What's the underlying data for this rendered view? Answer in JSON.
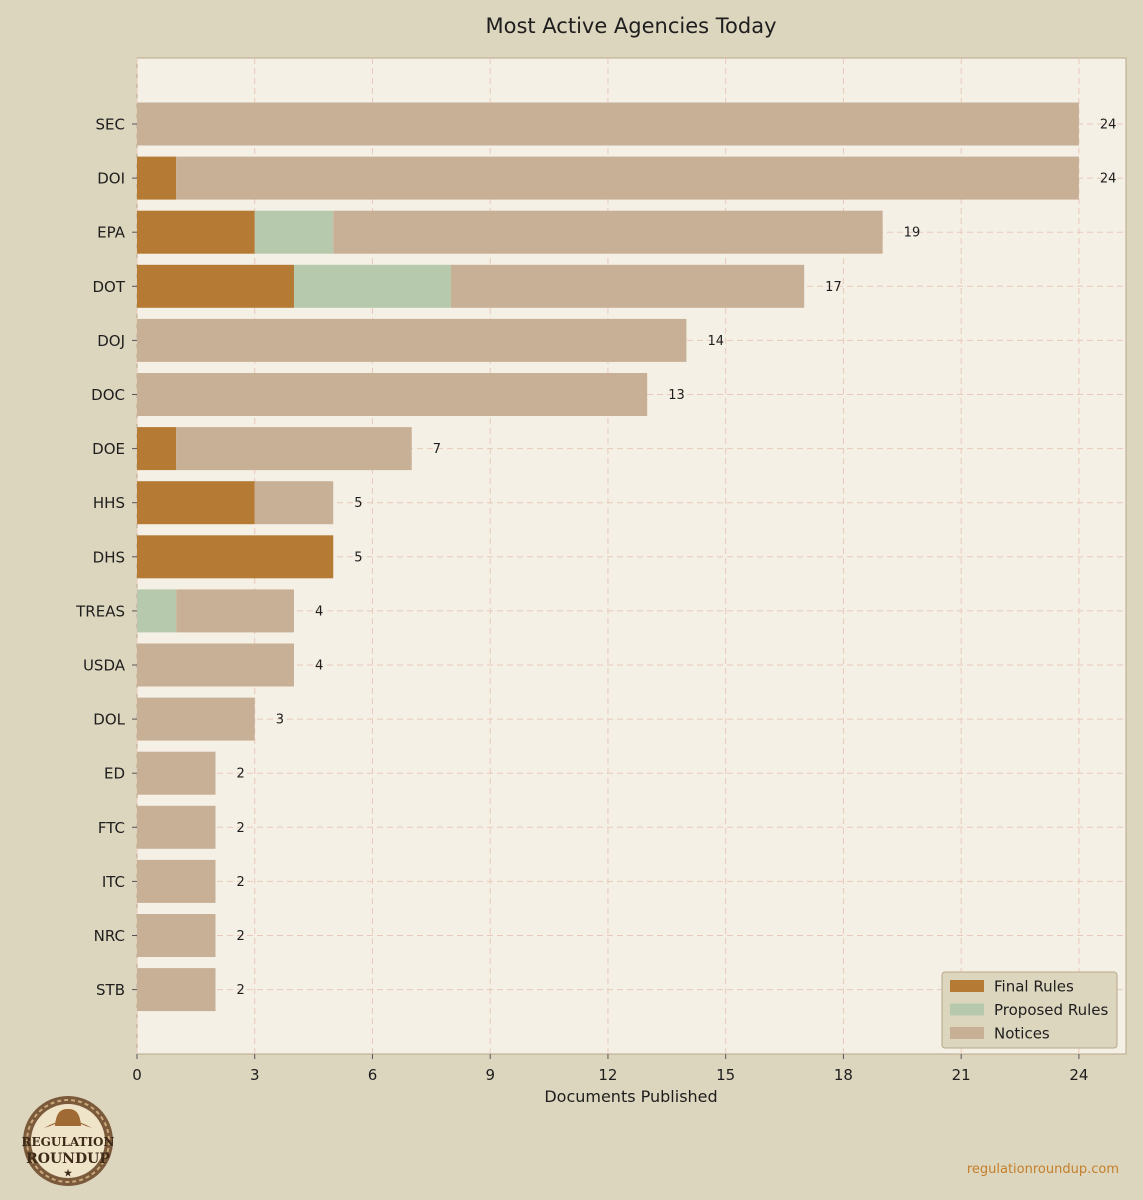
{
  "chart_data": {
    "type": "bar",
    "orientation": "horizontal",
    "stacked": true,
    "title": "Most Active Agencies Today",
    "xlabel": "Documents Published",
    "ylabel": "",
    "xlim": [
      0,
      25.2
    ],
    "xticks": [
      0,
      3,
      6,
      9,
      12,
      15,
      18,
      21,
      24
    ],
    "grid": true,
    "legend_position": "bottom-right",
    "categories": [
      "SEC",
      "DOI",
      "EPA",
      "DOT",
      "DOJ",
      "DOC",
      "DOE",
      "HHS",
      "DHS",
      "TREAS",
      "USDA",
      "DOL",
      "ED",
      "FTC",
      "ITC",
      "NRC",
      "STB"
    ],
    "series": [
      {
        "name": "Final Rules",
        "color": "#b57a33",
        "values": [
          0,
          1,
          3,
          4,
          0,
          0,
          1,
          3,
          5,
          0,
          0,
          0,
          0,
          0,
          0,
          0,
          0
        ]
      },
      {
        "name": "Proposed Rules",
        "color": "#b7c9ac",
        "values": [
          0,
          0,
          2,
          4,
          0,
          0,
          0,
          0,
          0,
          1,
          0,
          0,
          0,
          0,
          0,
          0,
          0
        ]
      },
      {
        "name": "Notices",
        "color": "#c8b097",
        "values": [
          24,
          23,
          14,
          9,
          14,
          13,
          6,
          2,
          0,
          3,
          4,
          3,
          2,
          2,
          2,
          2,
          2
        ]
      }
    ],
    "totals": [
      24,
      24,
      19,
      17,
      14,
      13,
      7,
      5,
      5,
      4,
      4,
      3,
      2,
      2,
      2,
      2,
      2
    ]
  },
  "footer": {
    "logo_line1": "REGULATION",
    "logo_line2": "ROUNDUP",
    "logo_star": "★",
    "website": "regulationroundup.com"
  }
}
